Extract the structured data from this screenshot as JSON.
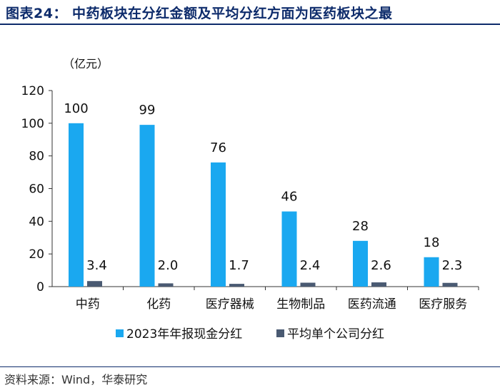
{
  "title": "图表24：  中药板块在分红金额及平均分红方面为医药板块之最",
  "source": "资料来源：Wind，华泰研究",
  "colors": {
    "series1": "#1aa8f0",
    "series2": "#4a5a72",
    "title": "#0d2b6b"
  },
  "chart_data": {
    "type": "bar",
    "unit_label": "（亿元）",
    "categories": [
      "中药",
      "化药",
      "医疗器械",
      "生物制品",
      "医药流通",
      "医疗服务"
    ],
    "series": [
      {
        "name": "2023年年报现金分红",
        "values": [
          100,
          99,
          76,
          46,
          28,
          18
        ],
        "labels": [
          "100",
          "99",
          "76",
          "46",
          "28",
          "18"
        ]
      },
      {
        "name": "平均单个公司分红",
        "values": [
          3.4,
          2.0,
          1.7,
          2.4,
          2.6,
          2.3
        ],
        "labels": [
          "3.4",
          "2.0",
          "1.7",
          "2.4",
          "2.6",
          "2.3"
        ]
      }
    ],
    "ylim": [
      0,
      120
    ],
    "yticks": [
      "0",
      "20",
      "40",
      "60",
      "80",
      "100",
      "120"
    ],
    "grid": false,
    "legend_position": "bottom"
  }
}
